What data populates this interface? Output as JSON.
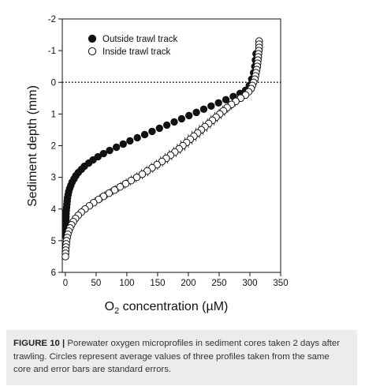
{
  "chart_data": {
    "type": "scatter",
    "xlabel": "O",
    "xlabel_subscript": "2",
    "xlabel_rest": " concentration (µM)",
    "ylabel": "Sediment depth (mm)",
    "xlim": [
      -5,
      350
    ],
    "ylim": [
      -2,
      6
    ],
    "y_inverted": true,
    "x_ticks": [
      0,
      50,
      100,
      150,
      200,
      250,
      300,
      350
    ],
    "y_ticks": [
      -2,
      -1,
      0,
      1,
      2,
      3,
      4,
      5,
      6
    ],
    "x_tick_labels": [
      "0",
      "50",
      "100",
      "150",
      "200",
      "250",
      "300",
      "350"
    ],
    "y_tick_labels": [
      "-2",
      "-1",
      "0",
      "1",
      "2",
      "3",
      "4",
      "5",
      "6"
    ],
    "reference_line": {
      "y": 0,
      "style": "dotted"
    },
    "legend_placement": "top-left",
    "grid": false,
    "series": [
      {
        "name": "Outside trawl track",
        "marker": "filled-circle",
        "color": "#111111",
        "error_bars": false,
        "points": [
          {
            "x": 310,
            "y": -0.9
          },
          {
            "x": 309,
            "y": -0.7
          },
          {
            "x": 308,
            "y": -0.5
          },
          {
            "x": 306,
            "y": -0.3
          },
          {
            "x": 303,
            "y": -0.1
          },
          {
            "x": 299,
            "y": 0.1
          },
          {
            "x": 293,
            "y": 0.25
          },
          {
            "x": 284,
            "y": 0.35
          },
          {
            "x": 273,
            "y": 0.45
          },
          {
            "x": 261,
            "y": 0.55
          },
          {
            "x": 249,
            "y": 0.65
          },
          {
            "x": 237,
            "y": 0.75
          },
          {
            "x": 225,
            "y": 0.85
          },
          {
            "x": 213,
            "y": 0.95
          },
          {
            "x": 201,
            "y": 1.05
          },
          {
            "x": 189,
            "y": 1.15
          },
          {
            "x": 177,
            "y": 1.25
          },
          {
            "x": 165,
            "y": 1.35
          },
          {
            "x": 153,
            "y": 1.45
          },
          {
            "x": 141,
            "y": 1.55
          },
          {
            "x": 129,
            "y": 1.65
          },
          {
            "x": 117,
            "y": 1.75
          },
          {
            "x": 105,
            "y": 1.85
          },
          {
            "x": 94,
            "y": 1.95
          },
          {
            "x": 83,
            "y": 2.05
          },
          {
            "x": 72,
            "y": 2.15
          },
          {
            "x": 62,
            "y": 2.25
          },
          {
            "x": 53,
            "y": 2.35
          },
          {
            "x": 45,
            "y": 2.45
          },
          {
            "x": 38,
            "y": 2.55
          },
          {
            "x": 31,
            "y": 2.65
          },
          {
            "x": 26,
            "y": 2.75
          },
          {
            "x": 21,
            "y": 2.85
          },
          {
            "x": 17,
            "y": 2.95
          },
          {
            "x": 14,
            "y": 3.05
          },
          {
            "x": 11,
            "y": 3.15
          },
          {
            "x": 9,
            "y": 3.25
          },
          {
            "x": 7,
            "y": 3.35
          },
          {
            "x": 5.5,
            "y": 3.45
          },
          {
            "x": 4.5,
            "y": 3.55
          },
          {
            "x": 3.5,
            "y": 3.65
          },
          {
            "x": 3,
            "y": 3.75
          },
          {
            "x": 2.5,
            "y": 3.85
          },
          {
            "x": 2,
            "y": 3.95
          },
          {
            "x": 1.5,
            "y": 4.05
          },
          {
            "x": 1.2,
            "y": 4.15
          },
          {
            "x": 1,
            "y": 4.25
          },
          {
            "x": 0.8,
            "y": 4.35
          },
          {
            "x": 0.6,
            "y": 4.45
          },
          {
            "x": 0.5,
            "y": 4.55
          },
          {
            "x": 0.4,
            "y": 4.65
          },
          {
            "x": 0.3,
            "y": 4.75
          },
          {
            "x": 0.2,
            "y": 4.85
          }
        ]
      },
      {
        "name": "Inside trawl track",
        "marker": "open-circle",
        "color": "#111111",
        "error_bars": true,
        "points": [
          {
            "x": 315,
            "y": -1.3,
            "err": 0
          },
          {
            "x": 315,
            "y": -1.2,
            "err": 0
          },
          {
            "x": 315,
            "y": -1.1,
            "err": 0
          },
          {
            "x": 314.5,
            "y": -1.0,
            "err": 0
          },
          {
            "x": 314,
            "y": -0.9,
            "err": 0
          },
          {
            "x": 313.5,
            "y": -0.8,
            "err": 0
          },
          {
            "x": 313,
            "y": -0.7,
            "err": 0
          },
          {
            "x": 312.5,
            "y": -0.6,
            "err": 0
          },
          {
            "x": 312,
            "y": -0.5,
            "err": 0
          },
          {
            "x": 311,
            "y": -0.4,
            "err": 0
          },
          {
            "x": 310,
            "y": -0.3,
            "err": 0
          },
          {
            "x": 309,
            "y": -0.2,
            "err": 0
          },
          {
            "x": 308,
            "y": -0.1,
            "err": 0
          },
          {
            "x": 306,
            "y": 0.0,
            "err": 0
          },
          {
            "x": 304,
            "y": 0.1,
            "err": 0
          },
          {
            "x": 302,
            "y": 0.2,
            "err": 0
          },
          {
            "x": 298,
            "y": 0.3,
            "err": 2
          },
          {
            "x": 293,
            "y": 0.4,
            "err": 3
          },
          {
            "x": 285,
            "y": 0.5,
            "err": 4
          },
          {
            "x": 277,
            "y": 0.6,
            "err": 5
          },
          {
            "x": 270,
            "y": 0.7,
            "err": 6
          },
          {
            "x": 263,
            "y": 0.8,
            "err": 7
          },
          {
            "x": 257,
            "y": 0.9,
            "err": 7
          },
          {
            "x": 251,
            "y": 1.0,
            "err": 8
          },
          {
            "x": 245,
            "y": 1.1,
            "err": 8
          },
          {
            "x": 239,
            "y": 1.2,
            "err": 8
          },
          {
            "x": 233,
            "y": 1.3,
            "err": 9
          },
          {
            "x": 227,
            "y": 1.4,
            "err": 9
          },
          {
            "x": 221,
            "y": 1.5,
            "err": 9
          },
          {
            "x": 215,
            "y": 1.6,
            "err": 9
          },
          {
            "x": 209,
            "y": 1.7,
            "err": 9
          },
          {
            "x": 203,
            "y": 1.8,
            "err": 9
          },
          {
            "x": 197,
            "y": 1.9,
            "err": 9
          },
          {
            "x": 191,
            "y": 2.0,
            "err": 9
          },
          {
            "x": 185,
            "y": 2.1,
            "err": 9
          },
          {
            "x": 178,
            "y": 2.2,
            "err": 9
          },
          {
            "x": 171,
            "y": 2.3,
            "err": 9
          },
          {
            "x": 164,
            "y": 2.4,
            "err": 9
          },
          {
            "x": 157,
            "y": 2.5,
            "err": 9
          },
          {
            "x": 149,
            "y": 2.6,
            "err": 9
          },
          {
            "x": 141,
            "y": 2.7,
            "err": 9
          },
          {
            "x": 133,
            "y": 2.8,
            "err": 9
          },
          {
            "x": 125,
            "y": 2.9,
            "err": 9
          },
          {
            "x": 116,
            "y": 3.0,
            "err": 9
          },
          {
            "x": 107,
            "y": 3.1,
            "err": 8
          },
          {
            "x": 98,
            "y": 3.2,
            "err": 8
          },
          {
            "x": 89,
            "y": 3.3,
            "err": 8
          },
          {
            "x": 80,
            "y": 3.4,
            "err": 7
          },
          {
            "x": 71,
            "y": 3.5,
            "err": 7
          },
          {
            "x": 62,
            "y": 3.6,
            "err": 6
          },
          {
            "x": 54,
            "y": 3.7,
            "err": 6
          },
          {
            "x": 46,
            "y": 3.8,
            "err": 5
          },
          {
            "x": 39,
            "y": 3.9,
            "err": 5
          },
          {
            "x": 32,
            "y": 4.0,
            "err": 4
          },
          {
            "x": 26,
            "y": 4.1,
            "err": 4
          },
          {
            "x": 21,
            "y": 4.2,
            "err": 3
          },
          {
            "x": 16.5,
            "y": 4.3,
            "err": 3
          },
          {
            "x": 13,
            "y": 4.4,
            "err": 2
          },
          {
            "x": 10,
            "y": 4.5,
            "err": 2
          },
          {
            "x": 7.5,
            "y": 4.6,
            "err": 1
          },
          {
            "x": 5.5,
            "y": 4.7,
            "err": 1
          },
          {
            "x": 4,
            "y": 4.8,
            "err": 0
          },
          {
            "x": 3,
            "y": 4.9,
            "err": 0
          },
          {
            "x": 2,
            "y": 5.0,
            "err": 0
          },
          {
            "x": 1.5,
            "y": 5.1,
            "err": 0
          },
          {
            "x": 1,
            "y": 5.2,
            "err": 0
          },
          {
            "x": 0.6,
            "y": 5.3,
            "err": 0
          },
          {
            "x": 0.3,
            "y": 5.4,
            "err": 0
          },
          {
            "x": 0.1,
            "y": 5.5,
            "err": 0
          }
        ]
      }
    ]
  },
  "caption": {
    "label": "FIGURE 10 |",
    "text": " Porewater oxygen microprofiles in sediment cores taken 2 days after trawling. Circles represent average values of three profiles taken from the same core and error bars are standard errors."
  }
}
